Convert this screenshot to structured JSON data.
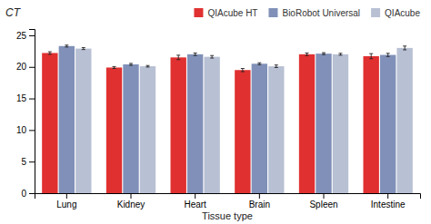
{
  "chart_data": {
    "type": "bar",
    "categories": [
      "Lung",
      "Kidney",
      "Heart",
      "Brain",
      "Spleen",
      "Intestine"
    ],
    "series": [
      {
        "name": "QIAcube HT",
        "color": "#e03030",
        "values": [
          22.2,
          19.9,
          21.5,
          19.5,
          22.0,
          21.7
        ],
        "errors": [
          0.2,
          0.15,
          0.35,
          0.25,
          0.2,
          0.4
        ]
      },
      {
        "name": "BioRobot Universal",
        "color": "#8090b8",
        "values": [
          23.3,
          20.4,
          22.0,
          20.5,
          22.1,
          21.9
        ],
        "errors": [
          0.15,
          0.15,
          0.2,
          0.15,
          0.15,
          0.25
        ]
      },
      {
        "name": "QIAcube",
        "color": "#b8c0d4",
        "values": [
          22.9,
          20.1,
          21.6,
          20.1,
          22.0,
          23.0
        ],
        "errors": [
          0.15,
          0.12,
          0.2,
          0.2,
          0.15,
          0.3
        ]
      }
    ],
    "xlabel": "Tissue type",
    "ylabel": "CT",
    "ylim": [
      0,
      26
    ],
    "yticks": [
      0,
      5,
      10,
      15,
      20,
      25
    ],
    "grid": false,
    "legend": "upper right"
  }
}
